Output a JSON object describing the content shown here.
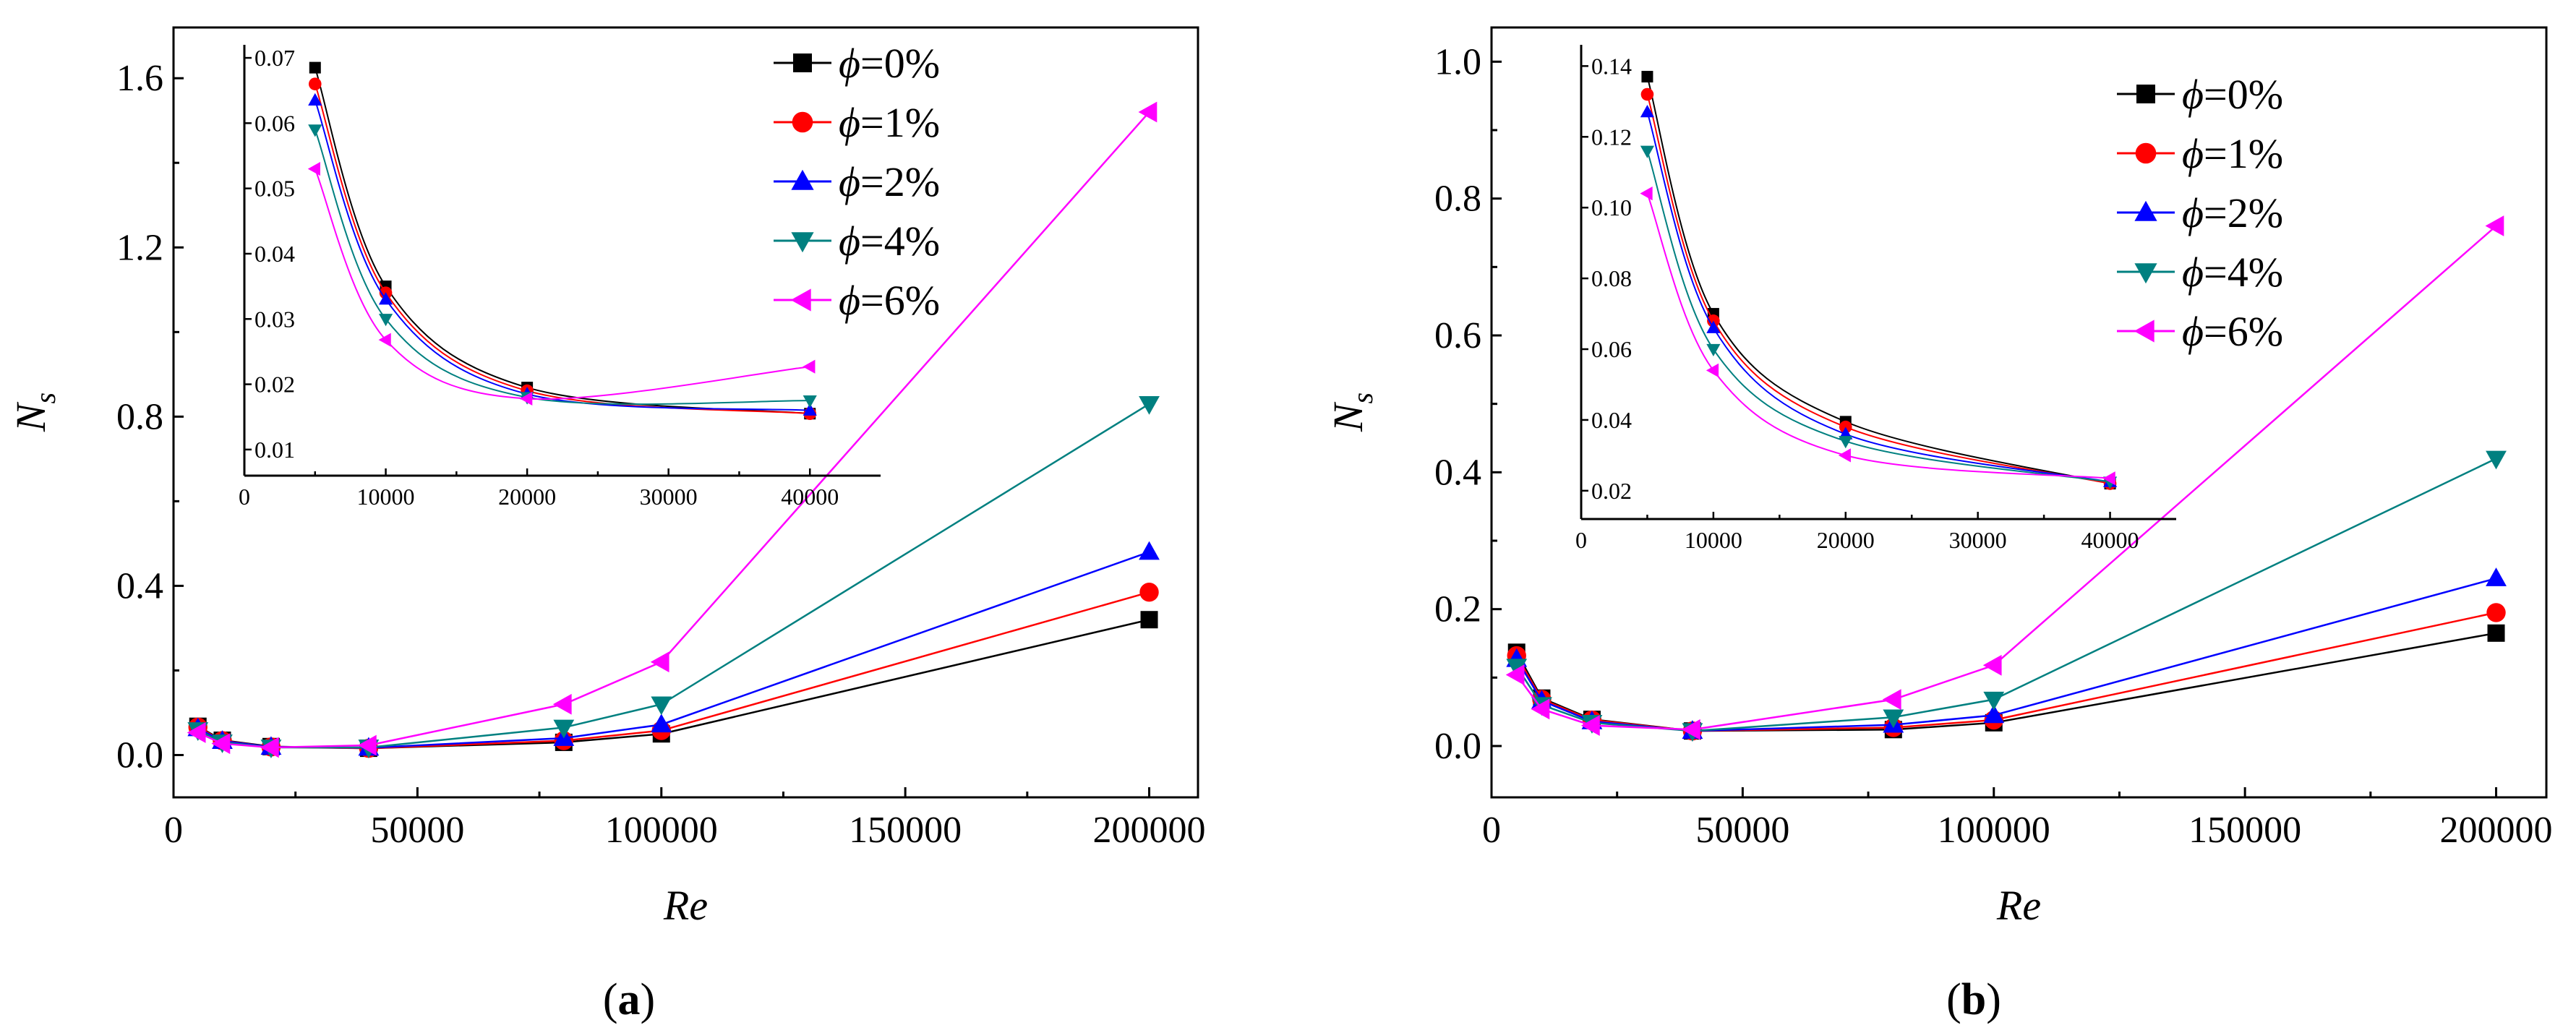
{
  "figure": {
    "panels": [
      {
        "panel_label": "a",
        "chart_data": {
          "type": "line",
          "xlabel": "Re",
          "ylabel": "N",
          "ylabel_sub": "s",
          "xlim": [
            0,
            210000
          ],
          "ylim": [
            -0.1,
            1.72
          ],
          "xticks": [
            0,
            50000,
            100000,
            150000,
            200000
          ],
          "xtick_labels": [
            "0",
            "50000",
            "100000",
            "150000",
            "200000"
          ],
          "yticks": [
            0.0,
            0.4,
            0.8,
            1.2,
            1.6
          ],
          "ytick_labels": [
            "0.0",
            "0.4",
            "0.8",
            "1.2",
            "1.6"
          ],
          "legend_position": "top-right",
          "series": [
            {
              "name": "0%",
              "color": "#000000",
              "marker": "square",
              "x": [
                5000,
                10000,
                20000,
                40000,
                80000,
                100000,
                200000
              ],
              "values": [
                0.068,
                0.035,
                0.02,
                0.016,
                0.03,
                0.05,
                0.32
              ]
            },
            {
              "name": "1%",
              "color": "#ff0000",
              "marker": "circle",
              "x": [
                5000,
                10000,
                20000,
                40000,
                80000,
                100000,
                200000
              ],
              "values": [
                0.066,
                0.034,
                0.019,
                0.016,
                0.034,
                0.058,
                0.385
              ]
            },
            {
              "name": "2%",
              "color": "#0000ff",
              "marker": "triangle-up",
              "x": [
                5000,
                10000,
                20000,
                40000,
                80000,
                100000,
                200000
              ],
              "values": [
                0.063,
                0.033,
                0.019,
                0.017,
                0.04,
                0.072,
                0.48
              ]
            },
            {
              "name": "4%",
              "color": "#008080",
              "marker": "triangle-down",
              "x": [
                5000,
                10000,
                20000,
                40000,
                80000,
                100000,
                200000
              ],
              "values": [
                0.059,
                0.03,
                0.018,
                0.018,
                0.065,
                0.12,
                0.83
              ]
            },
            {
              "name": "6%",
              "color": "#ff00ff",
              "marker": "triangle-left",
              "x": [
                5000,
                10000,
                20000,
                40000,
                80000,
                100000,
                200000
              ],
              "values": [
                0.053,
                0.027,
                0.018,
                0.023,
                0.12,
                0.22,
                1.52
              ]
            }
          ],
          "inset": {
            "xlim": [
              0,
              45000
            ],
            "ylim": [
              0.006,
              0.072
            ],
            "xticks": [
              0,
              10000,
              20000,
              30000,
              40000
            ],
            "xtick_labels": [
              "0",
              "10000",
              "20000",
              "30000",
              "40000"
            ],
            "yticks": [
              0.01,
              0.02,
              0.03,
              0.04,
              0.05,
              0.06,
              0.07
            ],
            "ytick_labels": [
              "0.01",
              "0.02",
              "0.03",
              "0.04",
              "0.05",
              "0.06",
              "0.07"
            ],
            "x": [
              5000,
              10000,
              20000,
              40000
            ],
            "series_values": [
              [
                0.0685,
                0.035,
                0.0195,
                0.0155
              ],
              [
                0.066,
                0.034,
                0.019,
                0.0155
              ],
              [
                0.0635,
                0.033,
                0.0185,
                0.016
              ],
              [
                0.059,
                0.03,
                0.018,
                0.0175
              ],
              [
                0.053,
                0.0268,
                0.0178,
                0.0227
              ]
            ]
          }
        }
      },
      {
        "panel_label": "b",
        "chart_data": {
          "type": "line",
          "xlabel": "Re",
          "ylabel": "N",
          "ylabel_sub": "s",
          "xlim": [
            0,
            210000
          ],
          "ylim": [
            -0.075,
            1.05
          ],
          "xticks": [
            0,
            50000,
            100000,
            150000,
            200000
          ],
          "xtick_labels": [
            "0",
            "50000",
            "100000",
            "150000",
            "200000"
          ],
          "yticks": [
            0.0,
            0.2,
            0.4,
            0.6,
            0.8,
            1.0
          ],
          "ytick_labels": [
            "0.0",
            "0.2",
            "0.4",
            "0.6",
            "0.8",
            "1.0"
          ],
          "legend_position": "top-right",
          "series": [
            {
              "name": "0%",
              "color": "#000000",
              "marker": "square",
              "x": [
                5000,
                10000,
                20000,
                40000,
                80000,
                100000,
                200000
              ],
              "values": [
                0.137,
                0.07,
                0.039,
                0.022,
                0.024,
                0.034,
                0.165
              ]
            },
            {
              "name": "1%",
              "color": "#ff0000",
              "marker": "circle",
              "x": [
                5000,
                10000,
                20000,
                40000,
                80000,
                100000,
                200000
              ],
              "values": [
                0.132,
                0.068,
                0.038,
                0.022,
                0.027,
                0.038,
                0.195
              ]
            },
            {
              "name": "2%",
              "color": "#0000ff",
              "marker": "triangle-up",
              "x": [
                5000,
                10000,
                20000,
                40000,
                80000,
                100000,
                200000
              ],
              "values": [
                0.127,
                0.066,
                0.036,
                0.022,
                0.031,
                0.045,
                0.245
              ]
            },
            {
              "name": "4%",
              "color": "#008080",
              "marker": "triangle-down",
              "x": [
                5000,
                10000,
                20000,
                40000,
                80000,
                100000,
                200000
              ],
              "values": [
                0.116,
                0.06,
                0.034,
                0.022,
                0.042,
                0.068,
                0.42
              ]
            },
            {
              "name": "6%",
              "color": "#ff00ff",
              "marker": "triangle-left",
              "x": [
                5000,
                10000,
                20000,
                40000,
                80000,
                100000,
                200000
              ],
              "values": [
                0.104,
                0.054,
                0.03,
                0.024,
                0.068,
                0.118,
                0.76
              ]
            }
          ],
          "inset": {
            "xlim": [
              0,
              45000
            ],
            "ylim": [
              0.012,
              0.146
            ],
            "xticks": [
              0,
              10000,
              20000,
              30000,
              40000
            ],
            "xtick_labels": [
              "0",
              "10000",
              "20000",
              "30000",
              "40000"
            ],
            "yticks": [
              0.02,
              0.04,
              0.06,
              0.08,
              0.1,
              0.12,
              0.14
            ],
            "ytick_labels": [
              "0.02",
              "0.04",
              "0.06",
              "0.08",
              "0.10",
              "0.12",
              "0.14"
            ],
            "x": [
              5000,
              10000,
              20000,
              40000
            ],
            "series_values": [
              [
                0.137,
                0.07,
                0.0395,
                0.022
              ],
              [
                0.132,
                0.068,
                0.038,
                0.022
              ],
              [
                0.127,
                0.066,
                0.036,
                0.0225
              ],
              [
                0.116,
                0.06,
                0.034,
                0.0225
              ],
              [
                0.104,
                0.054,
                0.03,
                0.0235
              ]
            ]
          }
        }
      }
    ],
    "legend_symbol": "ϕ",
    "legend_eq": "="
  }
}
